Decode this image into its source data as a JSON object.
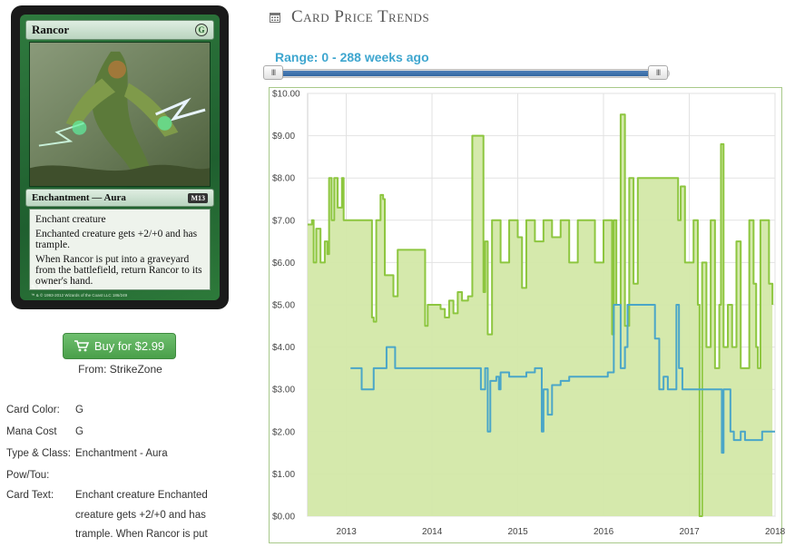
{
  "card": {
    "name": "Rancor",
    "mana_symbol": "G",
    "type_line": "Enchantment — Aura",
    "set_symbol": "M13",
    "rules_text": [
      "Enchant creature",
      "Enchanted creature gets +2/+0 and has trample.",
      "When Rancor is put into a graveyard from the battlefield, return Rancor to its owner's hand."
    ],
    "artist": "Kev Walker",
    "copyright": "™ & © 1993-2012 Wizards of the Coast LLC 186/249"
  },
  "buy": {
    "label": "Buy for $2.99",
    "icon": "shopping-cart-icon"
  },
  "from": "From: StrikeZone",
  "attributes": [
    {
      "label": "Card Color:",
      "value": "G"
    },
    {
      "label": "Mana Cost",
      "value": "G"
    },
    {
      "label": "Type & Class:",
      "value": "Enchantment - Aura"
    },
    {
      "label": "Pow/Tou:",
      "value": ""
    }
  ],
  "card_text_attr": {
    "label": "Card Text:",
    "lines": [
      "Enchant creature Enchanted",
      "creature gets +2/+0 and has",
      "trample. When Rancor is put"
    ]
  },
  "trends": {
    "title": "Card Price Trends",
    "icon": "calendar-icon",
    "range_label": "Range: 0 - 288 weeks ago",
    "slider_handle_glyph": "III"
  },
  "colors": {
    "accent_blue": "#3ea6cf",
    "green_line": "#8dc63f",
    "green_fill": "#d3e8a8",
    "blue_line": "#4aa6c8",
    "button_green": "#5cb85c"
  },
  "chart_data": {
    "type": "line",
    "ylim": [
      0,
      10
    ],
    "yticks": [
      "$0.00",
      "$1.00",
      "$2.00",
      "$3.00",
      "$4.00",
      "$5.00",
      "$6.00",
      "$7.00",
      "$8.00",
      "$9.00",
      "$10.00"
    ],
    "xlim": [
      2012.55,
      2018.0
    ],
    "xticks": [
      {
        "value": 2013,
        "label": "2013"
      },
      {
        "value": 2014,
        "label": "2014"
      },
      {
        "value": 2015,
        "label": "2015"
      },
      {
        "value": 2016,
        "label": "2016"
      },
      {
        "value": 2017,
        "label": "2017"
      },
      {
        "value": 2018,
        "label": "2018"
      }
    ],
    "series": [
      {
        "color": "#8dc63f",
        "fill": "#d3e8a8",
        "points": [
          [
            2012.55,
            6.9
          ],
          [
            2012.6,
            7.0
          ],
          [
            2012.62,
            6.0
          ],
          [
            2012.65,
            6.8
          ],
          [
            2012.7,
            6.0
          ],
          [
            2012.75,
            6.5
          ],
          [
            2012.78,
            6.2
          ],
          [
            2012.8,
            8.0
          ],
          [
            2012.83,
            7.0
          ],
          [
            2012.86,
            8.0
          ],
          [
            2012.9,
            7.3
          ],
          [
            2012.95,
            8.0
          ],
          [
            2012.97,
            7.0
          ],
          [
            2013.1,
            7.0
          ],
          [
            2013.2,
            7.0
          ],
          [
            2013.28,
            7.0
          ],
          [
            2013.3,
            4.7
          ],
          [
            2013.32,
            4.6
          ],
          [
            2013.35,
            7.0
          ],
          [
            2013.4,
            7.6
          ],
          [
            2013.43,
            7.5
          ],
          [
            2013.45,
            5.7
          ],
          [
            2013.52,
            5.7
          ],
          [
            2013.55,
            5.2
          ],
          [
            2013.6,
            6.3
          ],
          [
            2013.9,
            6.3
          ],
          [
            2013.92,
            4.5
          ],
          [
            2013.95,
            5.0
          ],
          [
            2014.1,
            4.9
          ],
          [
            2014.15,
            4.7
          ],
          [
            2014.2,
            5.1
          ],
          [
            2014.25,
            4.8
          ],
          [
            2014.3,
            5.3
          ],
          [
            2014.35,
            5.1
          ],
          [
            2014.42,
            5.2
          ],
          [
            2014.47,
            9.0
          ],
          [
            2014.55,
            9.0
          ],
          [
            2014.6,
            5.3
          ],
          [
            2014.62,
            6.5
          ],
          [
            2014.65,
            4.3
          ],
          [
            2014.7,
            7.0
          ],
          [
            2014.8,
            6.0
          ],
          [
            2014.9,
            7.0
          ],
          [
            2015.0,
            6.6
          ],
          [
            2015.05,
            5.4
          ],
          [
            2015.1,
            7.0
          ],
          [
            2015.2,
            6.5
          ],
          [
            2015.3,
            7.0
          ],
          [
            2015.4,
            6.6
          ],
          [
            2015.5,
            7.0
          ],
          [
            2015.6,
            6.0
          ],
          [
            2015.7,
            7.0
          ],
          [
            2015.85,
            7.0
          ],
          [
            2015.9,
            6.0
          ],
          [
            2016.0,
            7.0
          ],
          [
            2016.1,
            4.3
          ],
          [
            2016.12,
            7.0
          ],
          [
            2016.15,
            5.0
          ],
          [
            2016.2,
            9.5
          ],
          [
            2016.25,
            4.5
          ],
          [
            2016.3,
            8.0
          ],
          [
            2016.35,
            5.5
          ],
          [
            2016.4,
            8.0
          ],
          [
            2016.6,
            8.0
          ],
          [
            2016.85,
            8.0
          ],
          [
            2016.87,
            7.0
          ],
          [
            2016.9,
            7.8
          ],
          [
            2016.95,
            6.0
          ],
          [
            2017.05,
            7.0
          ],
          [
            2017.1,
            5.0
          ],
          [
            2017.12,
            0.0
          ],
          [
            2017.15,
            6.0
          ],
          [
            2017.2,
            4.0
          ],
          [
            2017.25,
            7.0
          ],
          [
            2017.3,
            3.5
          ],
          [
            2017.35,
            5.0
          ],
          [
            2017.37,
            8.8
          ],
          [
            2017.4,
            4.0
          ],
          [
            2017.45,
            5.0
          ],
          [
            2017.5,
            4.0
          ],
          [
            2017.55,
            6.5
          ],
          [
            2017.6,
            3.5
          ],
          [
            2017.7,
            7.0
          ],
          [
            2017.75,
            5.5
          ],
          [
            2017.78,
            4.0
          ],
          [
            2017.8,
            3.5
          ],
          [
            2017.83,
            7.0
          ],
          [
            2017.9,
            7.0
          ],
          [
            2017.93,
            5.5
          ],
          [
            2017.97,
            5.0
          ]
        ]
      },
      {
        "color": "#4aa6c8",
        "points": [
          [
            2013.05,
            3.5
          ],
          [
            2013.15,
            3.5
          ],
          [
            2013.18,
            3.0
          ],
          [
            2013.3,
            3.0
          ],
          [
            2013.32,
            3.5
          ],
          [
            2013.45,
            3.5
          ],
          [
            2013.47,
            4.0
          ],
          [
            2013.55,
            4.0
          ],
          [
            2013.57,
            3.5
          ],
          [
            2014.0,
            3.5
          ],
          [
            2014.4,
            3.5
          ],
          [
            2014.55,
            3.5
          ],
          [
            2014.57,
            3.0
          ],
          [
            2014.62,
            3.5
          ],
          [
            2014.65,
            2.0
          ],
          [
            2014.68,
            3.2
          ],
          [
            2014.75,
            3.3
          ],
          [
            2014.78,
            3.0
          ],
          [
            2014.8,
            3.4
          ],
          [
            2014.9,
            3.3
          ],
          [
            2015.1,
            3.4
          ],
          [
            2015.2,
            3.5
          ],
          [
            2015.28,
            2.0
          ],
          [
            2015.3,
            3.0
          ],
          [
            2015.35,
            2.4
          ],
          [
            2015.4,
            3.1
          ],
          [
            2015.5,
            3.2
          ],
          [
            2015.6,
            3.3
          ],
          [
            2015.9,
            3.3
          ],
          [
            2016.05,
            3.4
          ],
          [
            2016.1,
            3.4
          ],
          [
            2016.12,
            5.0
          ],
          [
            2016.18,
            5.0
          ],
          [
            2016.2,
            3.5
          ],
          [
            2016.25,
            4.0
          ],
          [
            2016.28,
            5.0
          ],
          [
            2016.4,
            5.0
          ],
          [
            2016.55,
            5.0
          ],
          [
            2016.6,
            4.2
          ],
          [
            2016.65,
            3.0
          ],
          [
            2016.7,
            3.3
          ],
          [
            2016.75,
            3.0
          ],
          [
            2016.8,
            3.0
          ],
          [
            2016.85,
            5.0
          ],
          [
            2016.88,
            3.5
          ],
          [
            2016.92,
            3.0
          ],
          [
            2017.2,
            3.0
          ],
          [
            2017.35,
            3.0
          ],
          [
            2017.38,
            1.5
          ],
          [
            2017.4,
            3.0
          ],
          [
            2017.45,
            3.0
          ],
          [
            2017.48,
            2.0
          ],
          [
            2017.52,
            1.8
          ],
          [
            2017.6,
            2.0
          ],
          [
            2017.65,
            1.8
          ],
          [
            2017.75,
            1.8
          ],
          [
            2017.85,
            2.0
          ],
          [
            2018.0,
            2.0
          ]
        ]
      }
    ],
    "grid": true
  }
}
